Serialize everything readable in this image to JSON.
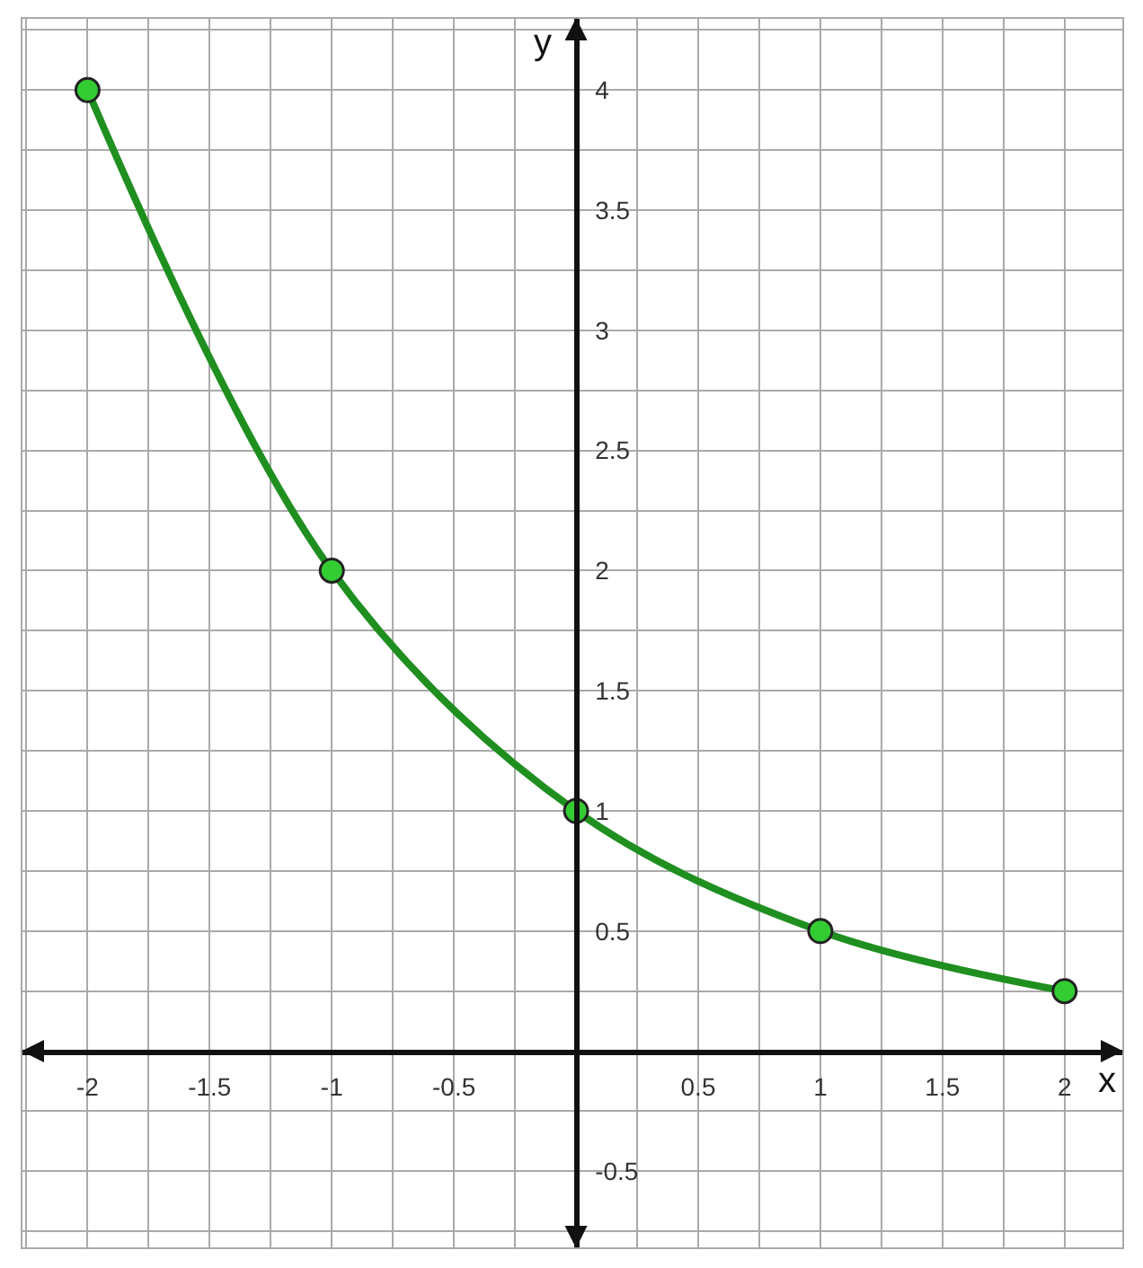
{
  "chart_data": {
    "type": "line",
    "xlabel": "x",
    "ylabel": "y",
    "x": [
      -2,
      -1,
      0,
      1,
      2
    ],
    "series": [
      {
        "color": "#1f8f1f",
        "values": [
          4,
          2,
          1,
          0.5,
          0.25
        ]
      }
    ],
    "xlim": [
      -2.27,
      2.24
    ],
    "ylim": [
      -0.82,
      4.3
    ],
    "xticks": [
      -2,
      -1.5,
      -1,
      -0.5,
      0.5,
      1,
      1.5,
      2
    ],
    "yticks": [
      -0.5,
      0.5,
      1,
      1.5,
      2,
      2.5,
      3,
      3.5,
      4
    ],
    "grid": true,
    "marker": "circle",
    "line_style": "solid"
  }
}
